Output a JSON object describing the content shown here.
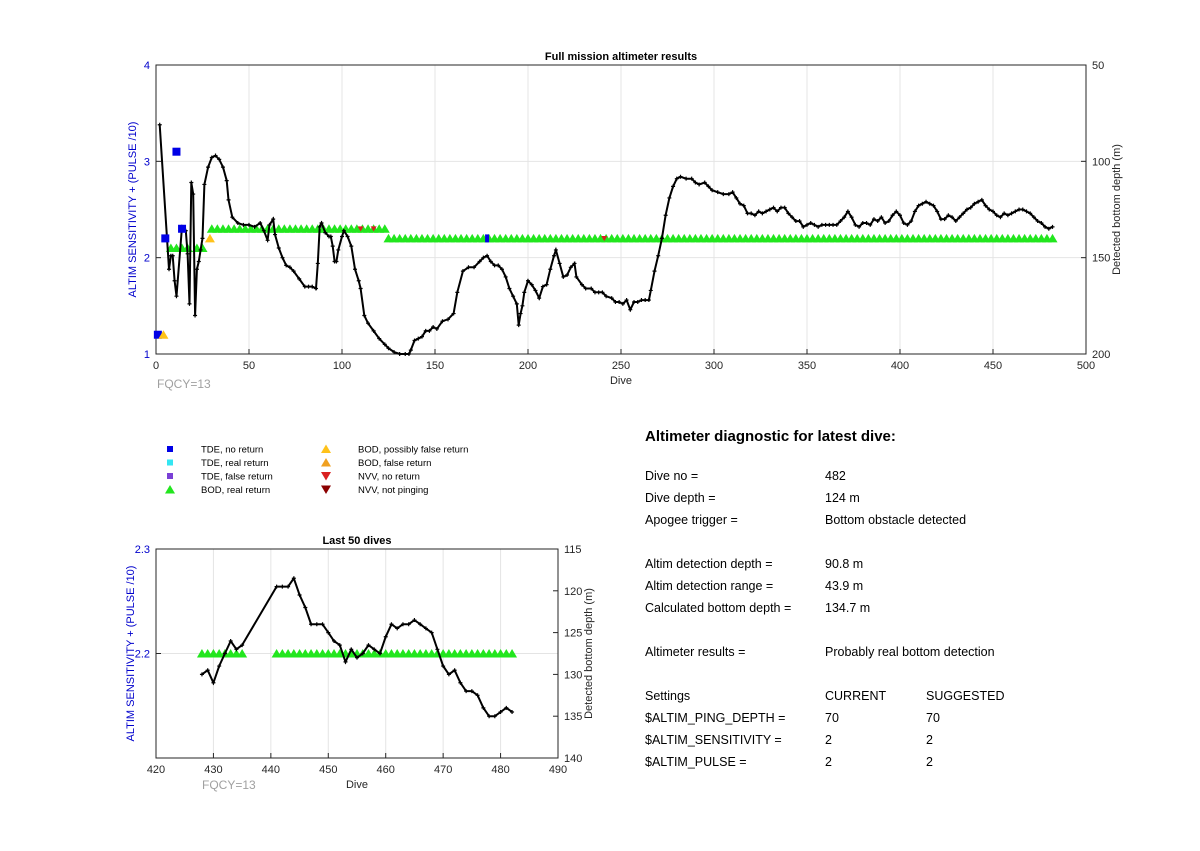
{
  "colors": {
    "axis_left": "#0000cc",
    "series_line": "#000000",
    "tde_no_return": "#0000e6",
    "tde_real_return": "#33e6f2",
    "tde_false_return": "#7a3fd6",
    "bod_real_return": "#22e61e",
    "bod_possibly_false": "#ffc21a",
    "bod_false": "#f0a020",
    "nvv_no_return": "#d92020",
    "nvv_not_pinging": "#8b0000",
    "grid": "#e4e4e4"
  },
  "chart_data": [
    {
      "type": "line",
      "title": "Full mission altimeter results",
      "xlabel": "Dive",
      "ylabel": "ALTIM SENSITIVITY + (PULSE /10)",
      "y2label": "Detected bottom depth (m)",
      "annotation": "FQCY=13",
      "xlim": [
        0,
        500
      ],
      "ylim": [
        1,
        4
      ],
      "y2lim": [
        50,
        200
      ],
      "y2_reversed": true,
      "grid": true,
      "x_ticks": [
        0,
        50,
        100,
        150,
        200,
        250,
        300,
        350,
        400,
        450,
        500
      ],
      "y_ticks": [
        1,
        2,
        3,
        4
      ],
      "y2_ticks": [
        50,
        100,
        150,
        200
      ],
      "depth_series": [
        [
          2,
          81
        ],
        [
          7,
          156
        ],
        [
          8,
          149
        ],
        [
          9,
          149
        ],
        [
          10,
          162
        ],
        [
          11,
          170
        ],
        [
          14,
          134
        ],
        [
          16,
          136
        ],
        [
          17,
          148
        ],
        [
          18,
          174
        ],
        [
          19,
          111
        ],
        [
          20,
          117
        ],
        [
          21,
          180
        ],
        [
          22,
          156
        ],
        [
          23,
          152
        ],
        [
          24,
          146
        ],
        [
          25,
          140
        ],
        [
          26,
          112
        ],
        [
          28,
          103
        ],
        [
          30,
          98
        ],
        [
          32,
          97
        ],
        [
          34,
          99
        ],
        [
          36,
          103
        ],
        [
          38,
          110
        ],
        [
          39,
          120
        ],
        [
          41,
          129
        ],
        [
          44,
          132
        ],
        [
          47,
          133
        ],
        [
          50,
          133
        ],
        [
          53,
          134
        ],
        [
          56,
          132
        ],
        [
          58,
          136
        ],
        [
          60,
          141
        ],
        [
          61,
          133
        ],
        [
          63,
          130
        ],
        [
          64,
          138
        ],
        [
          66,
          145
        ],
        [
          68,
          150
        ],
        [
          70,
          154
        ],
        [
          72,
          155
        ],
        [
          74,
          157
        ],
        [
          77,
          161
        ],
        [
          80,
          165
        ],
        [
          82,
          165
        ],
        [
          84,
          165
        ],
        [
          86,
          166
        ],
        [
          87,
          153
        ],
        [
          88,
          134
        ],
        [
          89,
          132
        ],
        [
          91,
          137
        ],
        [
          93,
          139
        ],
        [
          94,
          139
        ],
        [
          95,
          144
        ],
        [
          96,
          152
        ],
        [
          97,
          152
        ],
        [
          98,
          146
        ],
        [
          100,
          139
        ],
        [
          101,
          136
        ],
        [
          103,
          139
        ],
        [
          105,
          144
        ],
        [
          107,
          156
        ],
        [
          109,
          162
        ],
        [
          110,
          166
        ],
        [
          112,
          180
        ],
        [
          114,
          184
        ],
        [
          117,
          188
        ],
        [
          120,
          192
        ],
        [
          123,
          195
        ],
        [
          125,
          197
        ],
        [
          128,
          199
        ],
        [
          131,
          200
        ],
        [
          134,
          200
        ],
        [
          136,
          200
        ],
        [
          137,
          198
        ],
        [
          139,
          193
        ],
        [
          141,
          192
        ],
        [
          143,
          191
        ],
        [
          145,
          188
        ],
        [
          147,
          188
        ],
        [
          149,
          186
        ],
        [
          151,
          187
        ],
        [
          154,
          183
        ],
        [
          157,
          182
        ],
        [
          160,
          179
        ],
        [
          162,
          168
        ],
        [
          165,
          157
        ],
        [
          168,
          155
        ],
        [
          171,
          155
        ],
        [
          174,
          152
        ],
        [
          176,
          150
        ],
        [
          178,
          149
        ],
        [
          180,
          152
        ],
        [
          182,
          154
        ],
        [
          184,
          154
        ],
        [
          186,
          156
        ],
        [
          188,
          160
        ],
        [
          190,
          166
        ],
        [
          192,
          170
        ],
        [
          194,
          174
        ],
        [
          195,
          185
        ],
        [
          196,
          179
        ],
        [
          197,
          175
        ],
        [
          198,
          168
        ],
        [
          200,
          162
        ],
        [
          202,
          164
        ],
        [
          204,
          167
        ],
        [
          206,
          171
        ],
        [
          208,
          165
        ],
        [
          210,
          164
        ],
        [
          212,
          156
        ],
        [
          214,
          149
        ],
        [
          215,
          146
        ],
        [
          217,
          153
        ],
        [
          219,
          160
        ],
        [
          221,
          159
        ],
        [
          223,
          155
        ],
        [
          225,
          153
        ],
        [
          226,
          160
        ],
        [
          229,
          164
        ],
        [
          231,
          166
        ],
        [
          234,
          166
        ],
        [
          236,
          168
        ],
        [
          238,
          168
        ],
        [
          240,
          168
        ],
        [
          242,
          170
        ],
        [
          245,
          171
        ],
        [
          247,
          173
        ],
        [
          249,
          173
        ],
        [
          251,
          174
        ],
        [
          253,
          172
        ],
        [
          255,
          177
        ],
        [
          257,
          173
        ],
        [
          259,
          173
        ],
        [
          261,
          172
        ],
        [
          263,
          172
        ],
        [
          265,
          172
        ],
        [
          266,
          167
        ],
        [
          268,
          157
        ],
        [
          270,
          149
        ],
        [
          272,
          140
        ],
        [
          274,
          128
        ],
        [
          276,
          119
        ],
        [
          278,
          113
        ],
        [
          280,
          109
        ],
        [
          282,
          108
        ],
        [
          285,
          109
        ],
        [
          288,
          109
        ],
        [
          290,
          111
        ],
        [
          292,
          112
        ],
        [
          295,
          111
        ],
        [
          297,
          113
        ],
        [
          299,
          115
        ],
        [
          302,
          116
        ],
        [
          305,
          117
        ],
        [
          308,
          117
        ],
        [
          310,
          116
        ],
        [
          312,
          119
        ],
        [
          314,
          122
        ],
        [
          316,
          123
        ],
        [
          318,
          127
        ],
        [
          320,
          127
        ],
        [
          322,
          128
        ],
        [
          324,
          126
        ],
        [
          326,
          127
        ],
        [
          328,
          126
        ],
        [
          330,
          125
        ],
        [
          332,
          124
        ],
        [
          334,
          126
        ],
        [
          336,
          124
        ],
        [
          338,
          124
        ],
        [
          340,
          127
        ],
        [
          342,
          129
        ],
        [
          344,
          131
        ],
        [
          346,
          131
        ],
        [
          348,
          134
        ],
        [
          350,
          133
        ],
        [
          352,
          132
        ],
        [
          354,
          133
        ],
        [
          356,
          134
        ],
        [
          358,
          133
        ],
        [
          360,
          133
        ],
        [
          362,
          133
        ],
        [
          364,
          133
        ],
        [
          366,
          133
        ],
        [
          368,
          131
        ],
        [
          370,
          129
        ],
        [
          372,
          126
        ],
        [
          374,
          129
        ],
        [
          376,
          133
        ],
        [
          378,
          134
        ],
        [
          380,
          132
        ],
        [
          382,
          132
        ],
        [
          384,
          133
        ],
        [
          386,
          130
        ],
        [
          388,
          131
        ],
        [
          390,
          129
        ],
        [
          392,
          132
        ],
        [
          394,
          131
        ],
        [
          396,
          128
        ],
        [
          398,
          126
        ],
        [
          400,
          128
        ],
        [
          402,
          132
        ],
        [
          404,
          133
        ],
        [
          406,
          131
        ],
        [
          408,
          126
        ],
        [
          410,
          123
        ],
        [
          412,
          122
        ],
        [
          414,
          121
        ],
        [
          416,
          122
        ],
        [
          418,
          123
        ],
        [
          420,
          126
        ],
        [
          422,
          130
        ],
        [
          424,
          130
        ],
        [
          426,
          128
        ],
        [
          428,
          129
        ],
        [
          430,
          131
        ],
        [
          432,
          129
        ],
        [
          434,
          127
        ],
        [
          436,
          125
        ],
        [
          438,
          124
        ],
        [
          440,
          122
        ],
        [
          442,
          121
        ],
        [
          444,
          120
        ],
        [
          446,
          123
        ],
        [
          448,
          125
        ],
        [
          450,
          126
        ],
        [
          452,
          128
        ],
        [
          454,
          129
        ],
        [
          456,
          127
        ],
        [
          458,
          128
        ],
        [
          460,
          127
        ],
        [
          462,
          126
        ],
        [
          464,
          125
        ],
        [
          466,
          125
        ],
        [
          468,
          126
        ],
        [
          470,
          127
        ],
        [
          472,
          129
        ],
        [
          474,
          131
        ],
        [
          476,
          132
        ],
        [
          478,
          134
        ],
        [
          480,
          135
        ],
        [
          482,
          134
        ]
      ],
      "markers": {
        "tde_no_return": [
          [
            1,
            1.2
          ],
          [
            5,
            2.2
          ],
          [
            11,
            3.1
          ],
          [
            14,
            2.3
          ]
        ],
        "tde_real_return": [
          [
            178,
            2.2
          ]
        ],
        "tde_false_return": [],
        "bod_possibly_false_return": [
          [
            4,
            1.2
          ],
          [
            29,
            2.2
          ]
        ],
        "bod_false_return": [],
        "nvv_no_return": [
          [
            110,
            2.3
          ],
          [
            117,
            2.3
          ],
          [
            241,
            2.2
          ]
        ],
        "nvv_not_pinging": [],
        "bod_real_return_runs": [
          [
            8,
            18,
            2.1
          ],
          [
            22,
            27,
            2.1
          ],
          [
            30,
            124,
            2.3
          ],
          [
            125,
            482,
            2.2
          ]
        ]
      }
    },
    {
      "type": "line",
      "title": "Last 50 dives",
      "xlabel": "Dive",
      "ylabel": "ALTIM SENSITIVITY + (PULSE /10)",
      "y2label": "Detected bottom depth (m)",
      "annotation": "FQCY=13",
      "xlim": [
        420,
        490
      ],
      "ylim": [
        2.1,
        2.3
      ],
      "y2lim": [
        115,
        140
      ],
      "y2_reversed": true,
      "grid": true,
      "x_ticks": [
        420,
        430,
        440,
        450,
        460,
        470,
        480,
        490
      ],
      "y_ticks": [
        2.2,
        2.3
      ],
      "y2_ticks": [
        115,
        120,
        125,
        130,
        135,
        140
      ],
      "depth_series": [
        [
          428,
          130
        ],
        [
          429,
          129.5
        ],
        [
          430,
          131
        ],
        [
          431,
          129
        ],
        [
          432,
          127.5
        ],
        [
          433,
          126
        ],
        [
          434,
          127
        ],
        [
          435,
          126.5
        ],
        [
          441,
          119.5
        ],
        [
          442,
          119.5
        ],
        [
          443,
          119.5
        ],
        [
          444,
          118.5
        ],
        [
          445,
          120.5
        ],
        [
          446,
          122
        ],
        [
          447,
          124
        ],
        [
          448,
          124
        ],
        [
          449,
          124
        ],
        [
          450,
          125
        ],
        [
          451,
          126
        ],
        [
          452,
          126.5
        ],
        [
          453,
          128.5
        ],
        [
          454,
          127
        ],
        [
          455,
          128
        ],
        [
          456,
          127.5
        ],
        [
          457,
          126.5
        ],
        [
          458,
          127
        ],
        [
          459,
          127.5
        ],
        [
          460,
          125.5
        ],
        [
          461,
          124
        ],
        [
          462,
          124.5
        ],
        [
          463,
          124
        ],
        [
          464,
          124
        ],
        [
          465,
          123.5
        ],
        [
          466,
          124
        ],
        [
          467,
          124.5
        ],
        [
          468,
          125
        ],
        [
          469,
          127
        ],
        [
          470,
          129
        ],
        [
          471,
          130
        ],
        [
          472,
          129.5
        ],
        [
          473,
          131
        ],
        [
          474,
          132
        ],
        [
          475,
          132
        ],
        [
          476,
          132.5
        ],
        [
          477,
          134
        ],
        [
          478,
          135
        ],
        [
          479,
          135
        ],
        [
          480,
          134.5
        ],
        [
          481,
          134
        ],
        [
          482,
          134.5
        ]
      ],
      "markers": {
        "bod_real_return_runs": [
          [
            428,
            435,
            2.2
          ],
          [
            441,
            482,
            2.2
          ]
        ]
      }
    }
  ],
  "legend": [
    {
      "label": "TDE, no return",
      "marker": "square",
      "color": "#0000e6"
    },
    {
      "label": "TDE, real return",
      "marker": "square",
      "color": "#33e6f2"
    },
    {
      "label": "TDE, false return",
      "marker": "square",
      "color": "#7a3fd6"
    },
    {
      "label": "BOD, real return",
      "marker": "triangle-up",
      "color": "#22e61e"
    },
    {
      "label": "BOD, possibly false return",
      "marker": "triangle-up",
      "color": "#ffc21a"
    },
    {
      "label": "BOD, false return",
      "marker": "triangle-up",
      "color": "#f0a020"
    },
    {
      "label": "NVV, no return",
      "marker": "triangle-down",
      "color": "#d92020"
    },
    {
      "label": "NVV, not pinging",
      "marker": "triangle-down",
      "color": "#8b0000"
    }
  ],
  "diagnostic": {
    "title": "Altimeter diagnostic for latest dive:",
    "dive_no_label": "Dive no =",
    "dive_no": "482",
    "dive_depth_label": "Dive depth =",
    "dive_depth": "124 m",
    "apogee_label": "Apogee trigger =",
    "apogee": "Bottom obstacle detected",
    "detect_depth_label": "Altim detection depth =",
    "detect_depth": "90.8 m",
    "detect_range_label": "Altim detection range =",
    "detect_range": "43.9 m",
    "calc_depth_label": "Calculated bottom depth =",
    "calc_depth": "134.7 m",
    "results_label": "Altimeter results =",
    "results": "Probably real bottom detection",
    "settings_label": "Settings",
    "current_label": "CURRENT",
    "suggested_label": "SUGGESTED",
    "ping_depth_label": "$ALTIM_PING_DEPTH =",
    "ping_depth_current": "70",
    "ping_depth_suggested": "70",
    "sensitivity_label": "$ALTIM_SENSITIVITY =",
    "sensitivity_current": "2",
    "sensitivity_suggested": "2",
    "pulse_label": "$ALTIM_PULSE =",
    "pulse_current": "2",
    "pulse_suggested": "2"
  }
}
